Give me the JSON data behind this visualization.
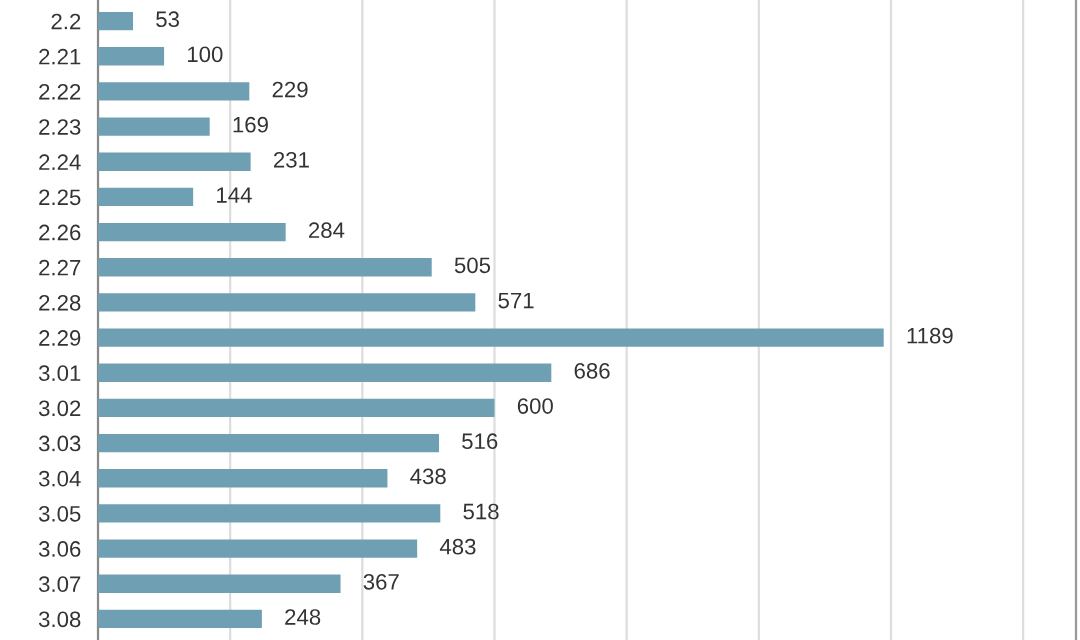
{
  "chart_data": {
    "type": "bar",
    "orientation": "horizontal",
    "categories": [
      "2.2",
      "2.21",
      "2.22",
      "2.23",
      "2.24",
      "2.25",
      "2.26",
      "2.27",
      "2.28",
      "2.29",
      "3.01",
      "3.02",
      "3.03",
      "3.04",
      "3.05",
      "3.06",
      "3.07",
      "3.08"
    ],
    "values": [
      53,
      100,
      229,
      169,
      231,
      144,
      284,
      505,
      571,
      1189,
      686,
      600,
      516,
      438,
      518,
      483,
      367,
      248
    ],
    "color": "#6f9fb3",
    "xlim": [
      0,
      1480
    ],
    "xticks": [
      {
        "value": 0,
        "label": null
      },
      {
        "value": 200,
        "label": null
      },
      {
        "value": 400,
        "label": null
      },
      {
        "value": 600,
        "label": null
      },
      {
        "value": 800,
        "label": null
      },
      {
        "value": 1000,
        "label": null
      },
      {
        "value": 1200,
        "label": null
      },
      {
        "value": 1400,
        "label": null
      }
    ],
    "tick_labels": "y",
    "grid": "x",
    "data_labels": true
  }
}
